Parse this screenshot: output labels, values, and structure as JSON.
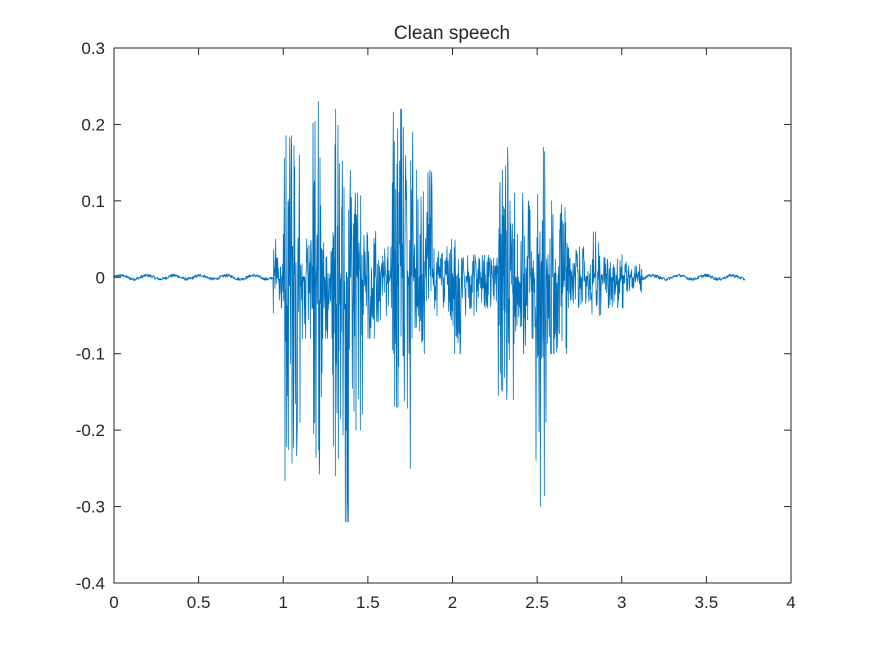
{
  "chart_data": {
    "type": "line",
    "title": "Clean speech",
    "xlabel": "",
    "ylabel": "",
    "xlim": [
      0,
      4
    ],
    "ylim": [
      -0.4,
      0.3
    ],
    "xticks": [
      0,
      0.5,
      1,
      1.5,
      2,
      2.5,
      3,
      3.5,
      4
    ],
    "yticks": [
      -0.4,
      -0.3,
      -0.2,
      -0.1,
      0,
      0.1,
      0.2,
      0.3
    ],
    "x_tick_labels": [
      "0",
      "0.5",
      "1",
      "1.5",
      "2",
      "2.5",
      "3",
      "3.5",
      "4"
    ],
    "y_tick_labels": [
      "-0.4",
      "-0.3",
      "-0.2",
      "-0.1",
      "0",
      "0.1",
      "0.2",
      "0.3"
    ],
    "grid": false,
    "legend": "none",
    "line_color": "#0072BD",
    "series": [
      {
        "signal_duration": 3.73,
        "envelope_segments": [
          {
            "start": 0.0,
            "end": 0.94,
            "max": 0.004,
            "min": -0.004
          },
          {
            "start": 0.94,
            "end": 0.96,
            "max": 0.05,
            "min": -0.05
          },
          {
            "start": 0.96,
            "end": 1.0,
            "max": 0.03,
            "min": -0.04
          },
          {
            "start": 1.0,
            "end": 1.08,
            "max": 0.21,
            "min": -0.27
          },
          {
            "start": 1.08,
            "end": 1.1,
            "max": 0.16,
            "min": -0.35
          },
          {
            "start": 1.1,
            "end": 1.17,
            "max": 0.05,
            "min": -0.08
          },
          {
            "start": 1.17,
            "end": 1.23,
            "max": 0.23,
            "min": -0.27
          },
          {
            "start": 1.23,
            "end": 1.29,
            "max": 0.05,
            "min": -0.08
          },
          {
            "start": 1.29,
            "end": 1.36,
            "max": 0.22,
            "min": -0.26
          },
          {
            "start": 1.36,
            "end": 1.4,
            "max": 0.2,
            "min": -0.32
          },
          {
            "start": 1.4,
            "end": 1.47,
            "max": 0.11,
            "min": -0.2
          },
          {
            "start": 1.47,
            "end": 1.58,
            "max": 0.06,
            "min": -0.08
          },
          {
            "start": 1.58,
            "end": 1.64,
            "max": 0.04,
            "min": -0.05
          },
          {
            "start": 1.64,
            "end": 1.73,
            "max": 0.22,
            "min": -0.17
          },
          {
            "start": 1.73,
            "end": 1.77,
            "max": 0.25,
            "min": -0.25
          },
          {
            "start": 1.77,
            "end": 1.88,
            "max": 0.14,
            "min": -0.1
          },
          {
            "start": 1.88,
            "end": 1.99,
            "max": 0.04,
            "min": -0.05
          },
          {
            "start": 1.99,
            "end": 2.06,
            "max": 0.05,
            "min": -0.1
          },
          {
            "start": 2.06,
            "end": 2.15,
            "max": 0.03,
            "min": -0.05
          },
          {
            "start": 2.15,
            "end": 2.27,
            "max": 0.03,
            "min": -0.04
          },
          {
            "start": 2.27,
            "end": 2.36,
            "max": 0.17,
            "min": -0.16
          },
          {
            "start": 2.36,
            "end": 2.44,
            "max": 0.11,
            "min": -0.1
          },
          {
            "start": 2.44,
            "end": 2.49,
            "max": 0.1,
            "min": -0.08
          },
          {
            "start": 2.49,
            "end": 2.56,
            "max": 0.17,
            "min": -0.3
          },
          {
            "start": 2.56,
            "end": 2.68,
            "max": 0.1,
            "min": -0.1
          },
          {
            "start": 2.68,
            "end": 2.8,
            "max": 0.04,
            "min": -0.04
          },
          {
            "start": 2.8,
            "end": 2.88,
            "max": 0.06,
            "min": -0.05
          },
          {
            "start": 2.88,
            "end": 2.92,
            "max": 0.03,
            "min": -0.02
          },
          {
            "start": 2.92,
            "end": 3.02,
            "max": 0.03,
            "min": -0.04
          },
          {
            "start": 3.02,
            "end": 3.12,
            "max": 0.02,
            "min": -0.02
          },
          {
            "start": 3.12,
            "end": 3.73,
            "max": 0.004,
            "min": -0.004
          }
        ]
      }
    ]
  }
}
